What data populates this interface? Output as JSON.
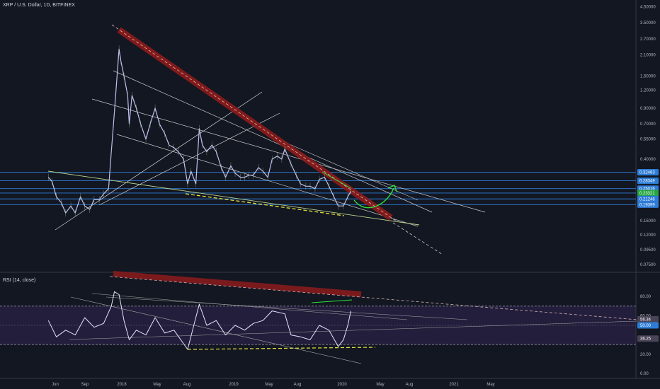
{
  "header": {
    "symbol": "XRP / U.S. Dollar, 1D, BITFINEX",
    "rsi_label": "RSI (14, close)"
  },
  "colors": {
    "background": "#131722",
    "candles": "#c3bff0",
    "price_levels": "#2e7cd6",
    "green_tag": "#26a641",
    "main_downtrend": "#8c1b1b",
    "support_dash": "#e8e33a",
    "arrow": "#2ee03c",
    "rsi_band": "#2a2144"
  },
  "chart_data": [
    {
      "type": "line",
      "title": "XRP / U.S. Dollar, 1D, BITFINEX",
      "x_axis_labels": [
        "Jun",
        "Sep",
        "2018",
        "May",
        "Aug",
        "2019",
        "May",
        "Aug",
        "2020",
        "May",
        "Aug",
        "2021",
        "May"
      ],
      "y_scale": "log",
      "y_ticks": [
        "4.50000",
        "3.50000",
        "2.70000",
        "2.10000",
        "1.50000",
        "1.20000",
        "0.90000",
        "0.70000",
        "0.55000",
        "0.40000",
        "0.32463",
        "0.28349",
        "0.25016",
        "0.23321",
        "0.21246",
        "0.19399",
        "0.15000",
        "0.12000",
        "0.09500",
        "0.07500"
      ],
      "ylim": [
        0.075,
        4.5
      ],
      "horizontal_levels": [
        0.32463,
        0.28349,
        0.25016,
        0.23321,
        0.21246,
        0.19399
      ],
      "last_price": 0.23321,
      "series": [
        {
          "x": [
            "2017-05-20",
            "2017-06-01",
            "2017-06-15",
            "2017-07-01",
            "2017-07-15",
            "2017-08-01",
            "2017-08-15",
            "2017-09-01",
            "2017-09-15",
            "2017-10-01",
            "2017-10-15",
            "2017-11-01",
            "2017-11-15",
            "2017-12-01",
            "2017-12-10",
            "2017-12-20",
            "2018-01-04",
            "2018-01-10",
            "2018-01-20",
            "2018-02-01",
            "2018-02-06",
            "2018-02-15",
            "2018-03-01",
            "2018-03-15",
            "2018-04-01",
            "2018-04-15",
            "2018-05-01",
            "2018-05-15",
            "2018-06-01",
            "2018-06-15",
            "2018-07-01",
            "2018-07-15",
            "2018-08-01",
            "2018-08-14",
            "2018-08-25",
            "2018-09-10",
            "2018-09-21",
            "2018-10-01",
            "2018-10-15",
            "2018-11-01",
            "2018-11-15",
            "2018-12-01",
            "2018-12-15",
            "2019-01-01",
            "2019-01-15",
            "2019-02-01",
            "2019-02-15",
            "2019-03-01",
            "2019-03-15",
            "2019-04-01",
            "2019-04-15",
            "2019-05-01",
            "2019-05-15",
            "2019-06-01",
            "2019-06-15",
            "2019-06-25",
            "2019-07-15",
            "2019-08-01",
            "2019-08-15",
            "2019-09-01",
            "2019-09-15",
            "2019-10-01",
            "2019-10-15",
            "2019-11-01",
            "2019-11-15",
            "2019-12-01",
            "2019-12-15",
            "2020-01-01",
            "2020-01-15",
            "2020-01-25"
          ],
          "y": [
            0.3,
            0.28,
            0.22,
            0.2,
            0.17,
            0.19,
            0.17,
            0.22,
            0.19,
            0.18,
            0.21,
            0.21,
            0.23,
            0.25,
            0.45,
            0.85,
            2.3,
            1.9,
            1.5,
            1.1,
            0.7,
            1.1,
            0.9,
            0.7,
            0.55,
            0.7,
            0.9,
            0.7,
            0.6,
            0.5,
            0.48,
            0.45,
            0.4,
            0.27,
            0.33,
            0.27,
            0.65,
            0.5,
            0.45,
            0.5,
            0.45,
            0.35,
            0.3,
            0.36,
            0.32,
            0.3,
            0.3,
            0.31,
            0.31,
            0.35,
            0.33,
            0.3,
            0.4,
            0.42,
            0.4,
            0.47,
            0.37,
            0.31,
            0.27,
            0.26,
            0.26,
            0.25,
            0.29,
            0.3,
            0.26,
            0.22,
            0.19,
            0.19,
            0.22,
            0.24
          ]
        }
      ]
    },
    {
      "type": "line",
      "title": "RSI (14, close)",
      "y_ticks": [
        "80.00",
        "60.00",
        "56.34",
        "50.00",
        "36.25",
        "20.00",
        "0.00"
      ],
      "ylim": [
        0,
        100
      ],
      "reference_lines": [
        70,
        30
      ],
      "values_shown": [
        56.34,
        50.0,
        36.25
      ],
      "series": [
        {
          "x": [
            "2017-05-20",
            "2017-06-15",
            "2017-07-15",
            "2017-08-15",
            "2017-09-15",
            "2017-10-15",
            "2017-11-15",
            "2017-12-10",
            "2017-12-20",
            "2018-01-04",
            "2018-01-20",
            "2018-02-06",
            "2018-03-01",
            "2018-04-01",
            "2018-05-01",
            "2018-06-01",
            "2018-07-01",
            "2018-08-14",
            "2018-09-21",
            "2018-10-15",
            "2018-11-15",
            "2018-12-15",
            "2019-01-15",
            "2019-02-15",
            "2019-03-15",
            "2019-04-15",
            "2019-05-15",
            "2019-06-25",
            "2019-07-15",
            "2019-08-15",
            "2019-09-15",
            "2019-10-15",
            "2019-11-15",
            "2019-12-15",
            "2020-01-01",
            "2020-01-15",
            "2020-01-25"
          ],
          "y": [
            55,
            38,
            45,
            40,
            58,
            48,
            52,
            70,
            85,
            82,
            55,
            35,
            45,
            40,
            58,
            42,
            45,
            25,
            72,
            50,
            55,
            40,
            50,
            45,
            52,
            55,
            65,
            62,
            40,
            38,
            35,
            50,
            45,
            28,
            35,
            50,
            65
          ]
        }
      ]
    }
  ]
}
